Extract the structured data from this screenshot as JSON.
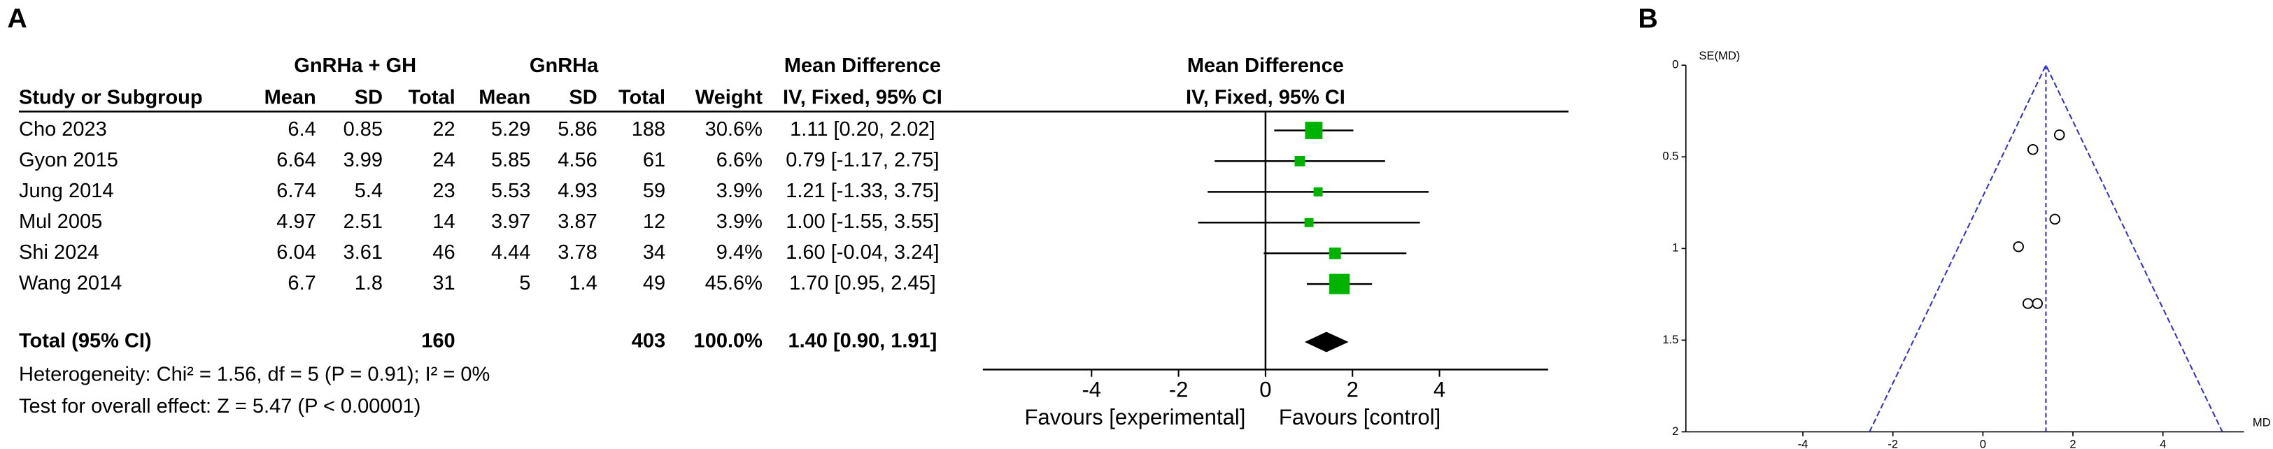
{
  "chart_data": [
    {
      "type": "forest",
      "panel_label": "A",
      "group_headers": [
        "GnRHa + GH",
        "GnRHa",
        "Mean Difference"
      ],
      "column_headers": [
        "Study or Subgroup",
        "Mean",
        "SD",
        "Total",
        "Mean",
        "SD",
        "Total",
        "Weight",
        "IV, Fixed, 95% CI"
      ],
      "plot_headers": [
        "Mean Difference",
        "IV, Fixed, 95% CI"
      ],
      "color": "#00b300",
      "studies": [
        {
          "name": "Cho 2023",
          "exp_mean": 6.4,
          "exp_sd": 0.85,
          "exp_total": 22,
          "ctrl_mean": 5.29,
          "ctrl_sd": 5.86,
          "ctrl_total": 188,
          "weight": {
            "value": 30.6,
            "label": "30.6%"
          },
          "md": 1.11,
          "ci": [
            0.2,
            2.02
          ],
          "ci_label": "1.11 [0.20, 2.02]"
        },
        {
          "name": "Gyon 2015",
          "exp_mean": 6.64,
          "exp_sd": 3.99,
          "exp_total": 24,
          "ctrl_mean": 5.85,
          "ctrl_sd": 4.56,
          "ctrl_total": 61,
          "weight": {
            "value": 6.6,
            "label": "6.6%"
          },
          "md": 0.79,
          "ci": [
            -1.17,
            2.75
          ],
          "ci_label": "0.79 [-1.17, 2.75]"
        },
        {
          "name": "Jung 2014",
          "exp_mean": 6.74,
          "exp_sd": 5.4,
          "exp_total": 23,
          "ctrl_mean": 5.53,
          "ctrl_sd": 4.93,
          "ctrl_total": 59,
          "weight": {
            "value": 3.9,
            "label": "3.9%"
          },
          "md": 1.21,
          "ci": [
            -1.33,
            3.75
          ],
          "ci_label": "1.21 [-1.33, 3.75]"
        },
        {
          "name": "Mul 2005",
          "exp_mean": 4.97,
          "exp_sd": 2.51,
          "exp_total": 14,
          "ctrl_mean": 3.97,
          "ctrl_sd": 3.87,
          "ctrl_total": 12,
          "weight": {
            "value": 3.9,
            "label": "3.9%"
          },
          "md": 1.0,
          "ci": [
            -1.55,
            3.55
          ],
          "ci_label": "1.00 [-1.55, 3.55]"
        },
        {
          "name": "Shi 2024",
          "exp_mean": 6.04,
          "exp_sd": 3.61,
          "exp_total": 46,
          "ctrl_mean": 4.44,
          "ctrl_sd": 3.78,
          "ctrl_total": 34,
          "weight": {
            "value": 9.4,
            "label": "9.4%"
          },
          "md": 1.6,
          "ci": [
            -0.04,
            3.24
          ],
          "ci_label": "1.60 [-0.04, 3.24]"
        },
        {
          "name": "Wang 2014",
          "exp_mean": 6.7,
          "exp_sd": 1.8,
          "exp_total": 31,
          "ctrl_mean": 5,
          "ctrl_sd": 1.4,
          "ctrl_total": 49,
          "weight": {
            "value": 45.6,
            "label": "45.6%"
          },
          "md": 1.7,
          "ci": [
            0.95,
            2.45
          ],
          "ci_label": "1.70 [0.95, 2.45]"
        }
      ],
      "total": {
        "name": "Total (95% CI)",
        "exp_total": 160,
        "ctrl_total": 403,
        "weight": {
          "value": 100.0,
          "label": "100.0%"
        },
        "md": 1.4,
        "ci": [
          0.9,
          1.91
        ],
        "ci_label": "1.40 [0.90, 1.91]"
      },
      "heterogeneity": "Heterogeneity: Chi² = 1.56, df = 5 (P = 0.91); I² = 0%",
      "overall_effect": "Test for overall effect: Z = 5.47 (P < 0.00001)",
      "xlim": [
        -6.5,
        6.5
      ],
      "xticks": [
        -4,
        -2,
        0,
        2,
        4
      ],
      "favours": [
        "Favours [experimental]",
        "Favours [control]"
      ]
    },
    {
      "type": "funnel",
      "panel_label": "B",
      "y_label": "SE(MD)",
      "x_label": "MD",
      "x": [
        1.11,
        0.79,
        1.21,
        1.0,
        1.6,
        1.7
      ],
      "y": [
        0.46,
        0.99,
        1.3,
        1.3,
        0.84,
        0.38
      ],
      "pooled": 1.4,
      "line_color": "#3333cc",
      "xlim": [
        -6.6,
        5.8
      ],
      "xticks": [
        -4,
        -2,
        0,
        2,
        4
      ],
      "ylim": [
        0,
        2
      ],
      "yticks": [
        0,
        0.5,
        1,
        1.5,
        2
      ],
      "y_reversed": true
    }
  ]
}
